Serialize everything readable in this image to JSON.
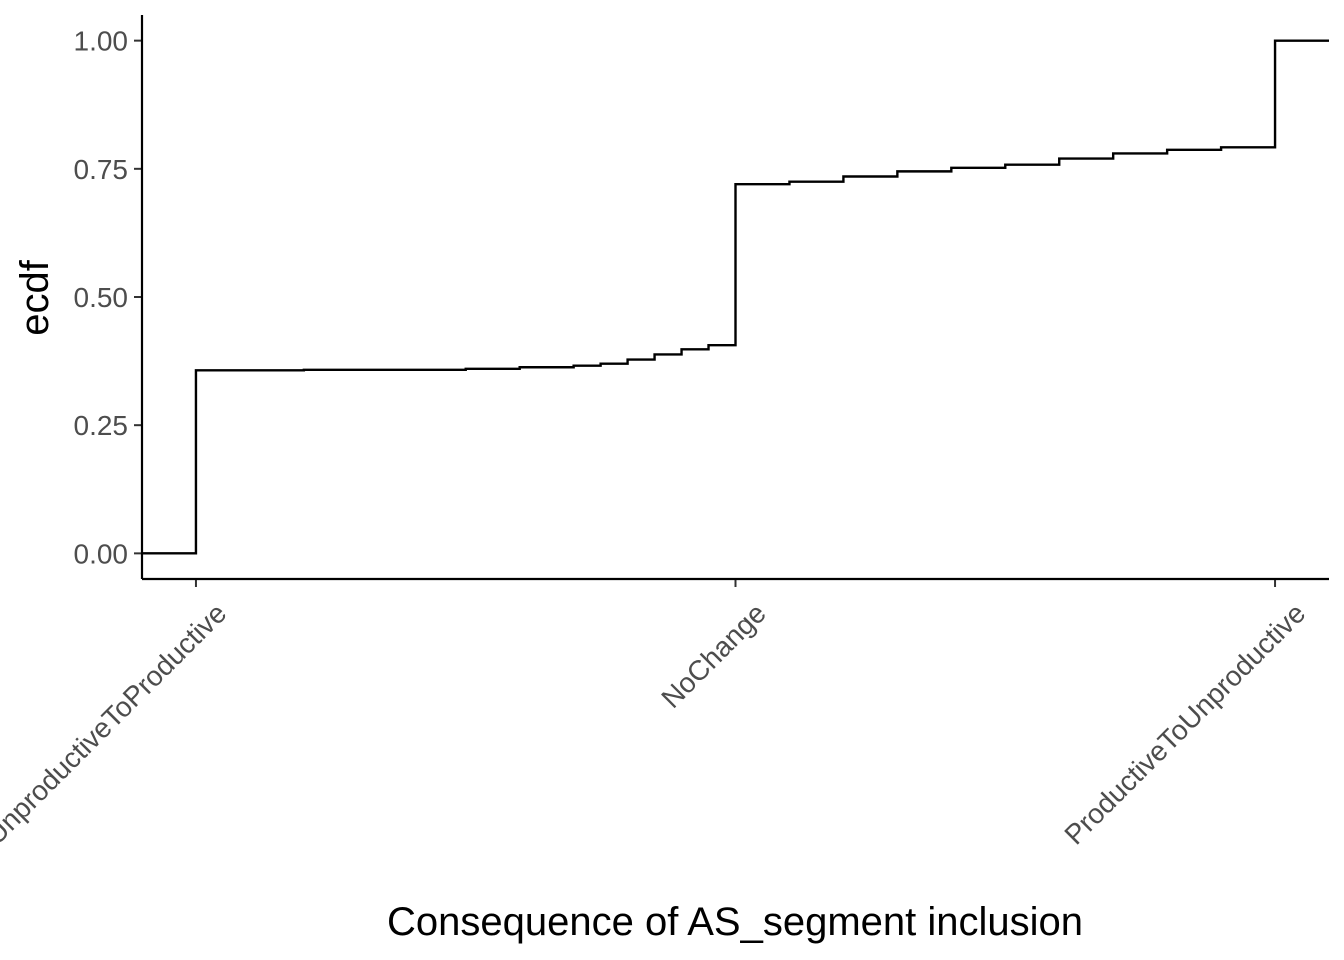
{
  "chart_data": {
    "type": "line",
    "subtype": "ecdf-step",
    "xlabel": "Consequence of AS_segment inclusion",
    "ylabel": "ecdf",
    "x_categories": [
      "UnproductiveToProductive",
      "NoChange",
      "ProductiveToUnproductive"
    ],
    "y_ticks": [
      {
        "value": 0.0,
        "label": "0.00"
      },
      {
        "value": 0.25,
        "label": "0.25"
      },
      {
        "value": 0.5,
        "label": "0.50"
      },
      {
        "value": 0.75,
        "label": "0.75"
      },
      {
        "value": 1.0,
        "label": "1.00"
      }
    ],
    "ylim": [
      -0.05,
      1.05
    ],
    "xlim": [
      0.9,
      3.1
    ],
    "grid": false,
    "legend": "none",
    "line_color": "#000000",
    "series": [
      {
        "points": [
          [
            0.9,
            0.0
          ],
          [
            1.0,
            0.0
          ],
          [
            1.0,
            0.357
          ],
          [
            1.2,
            0.358
          ],
          [
            1.5,
            0.36
          ],
          [
            1.6,
            0.363
          ],
          [
            1.7,
            0.366
          ],
          [
            1.75,
            0.37
          ],
          [
            1.8,
            0.378
          ],
          [
            1.85,
            0.388
          ],
          [
            1.9,
            0.398
          ],
          [
            1.95,
            0.406
          ],
          [
            2.0,
            0.406
          ],
          [
            2.0,
            0.72
          ],
          [
            2.1,
            0.725
          ],
          [
            2.2,
            0.735
          ],
          [
            2.3,
            0.745
          ],
          [
            2.4,
            0.752
          ],
          [
            2.5,
            0.758
          ],
          [
            2.6,
            0.77
          ],
          [
            2.7,
            0.78
          ],
          [
            2.8,
            0.787
          ],
          [
            2.9,
            0.792
          ],
          [
            3.0,
            0.793
          ],
          [
            3.0,
            1.0
          ],
          [
            3.1,
            1.0
          ]
        ]
      }
    ]
  }
}
